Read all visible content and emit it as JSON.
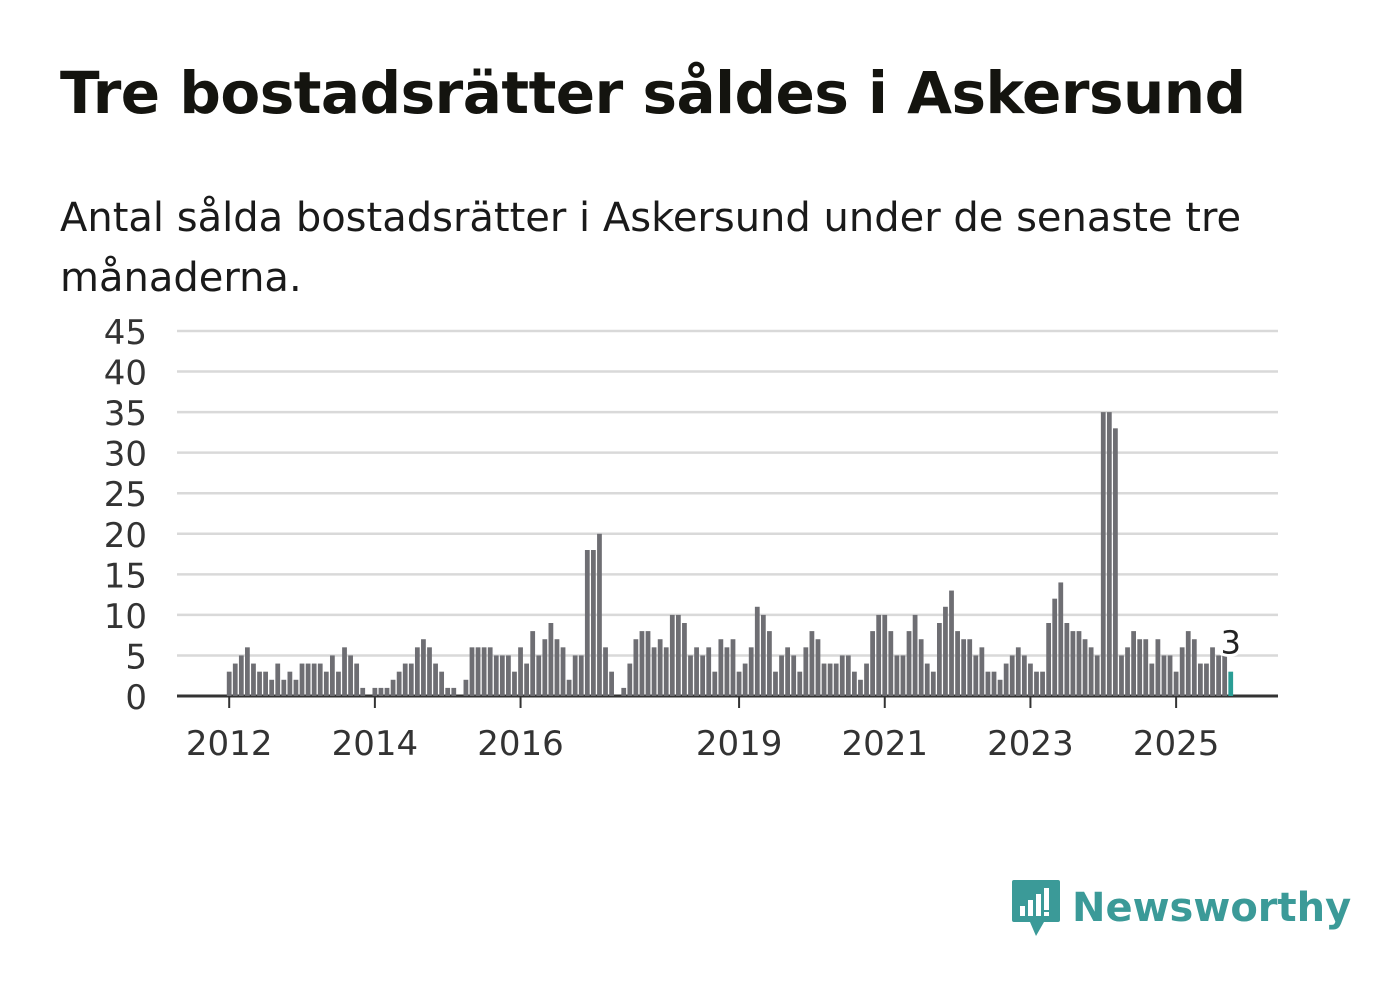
{
  "title": "Tre bostadsrätter såldes i Askersund",
  "subtitle": "Antal sålda bostadsrätter i Askersund under de senaste tre månaderna.",
  "brand": {
    "name": "Newsworthy",
    "logo_icon": "newsworthy-logo-icon",
    "color": "#3b9a98"
  },
  "colors": {
    "bar": "#6e6e73",
    "highlight": "#2a9d95",
    "grid": "#d9d9d9",
    "axis": "#333333"
  },
  "chart_data": {
    "type": "bar",
    "x_unit": "month",
    "start_month": "2012-01",
    "ylim": [
      0,
      45
    ],
    "y_ticks": [
      0,
      5,
      10,
      15,
      20,
      25,
      30,
      35,
      40,
      45
    ],
    "x_tick_labels": [
      {
        "label": "2012",
        "month": "2012-01"
      },
      {
        "label": "2014",
        "month": "2014-01"
      },
      {
        "label": "2016",
        "month": "2016-01"
      },
      {
        "label": "2019",
        "month": "2019-01"
      },
      {
        "label": "2021",
        "month": "2021-01"
      },
      {
        "label": "2023",
        "month": "2023-01"
      },
      {
        "label": "2025",
        "month": "2025-01"
      }
    ],
    "values": [
      3,
      4,
      5,
      6,
      4,
      3,
      3,
      2,
      4,
      2,
      3,
      2,
      4,
      4,
      4,
      4,
      3,
      5,
      3,
      6,
      5,
      4,
      1,
      0,
      1,
      1,
      1,
      2,
      3,
      4,
      4,
      6,
      7,
      6,
      4,
      3,
      1,
      1,
      0,
      2,
      6,
      6,
      6,
      6,
      5,
      5,
      5,
      3,
      6,
      4,
      8,
      5,
      7,
      9,
      7,
      6,
      2,
      5,
      5,
      18,
      18,
      20,
      6,
      3,
      0,
      1,
      4,
      7,
      8,
      8,
      6,
      7,
      6,
      10,
      10,
      9,
      5,
      6,
      5,
      6,
      3,
      7,
      6,
      7,
      3,
      4,
      6,
      11,
      10,
      8,
      3,
      5,
      6,
      5,
      3,
      6,
      8,
      7,
      4,
      4,
      4,
      5,
      5,
      3,
      2,
      4,
      8,
      10,
      10,
      8,
      5,
      5,
      8,
      10,
      7,
      4,
      3,
      9,
      11,
      13,
      8,
      7,
      7,
      5,
      6,
      3,
      3,
      2,
      4,
      5,
      6,
      5,
      4,
      3,
      3,
      9,
      12,
      14,
      9,
      8,
      8,
      7,
      6,
      5,
      35,
      35,
      33,
      5,
      6,
      8,
      7,
      7,
      4,
      7,
      5,
      5,
      3,
      6,
      8,
      7,
      4,
      4,
      6,
      5,
      5,
      3
    ],
    "highlight_last": true,
    "annotation": {
      "text": "3",
      "target": "last"
    }
  }
}
